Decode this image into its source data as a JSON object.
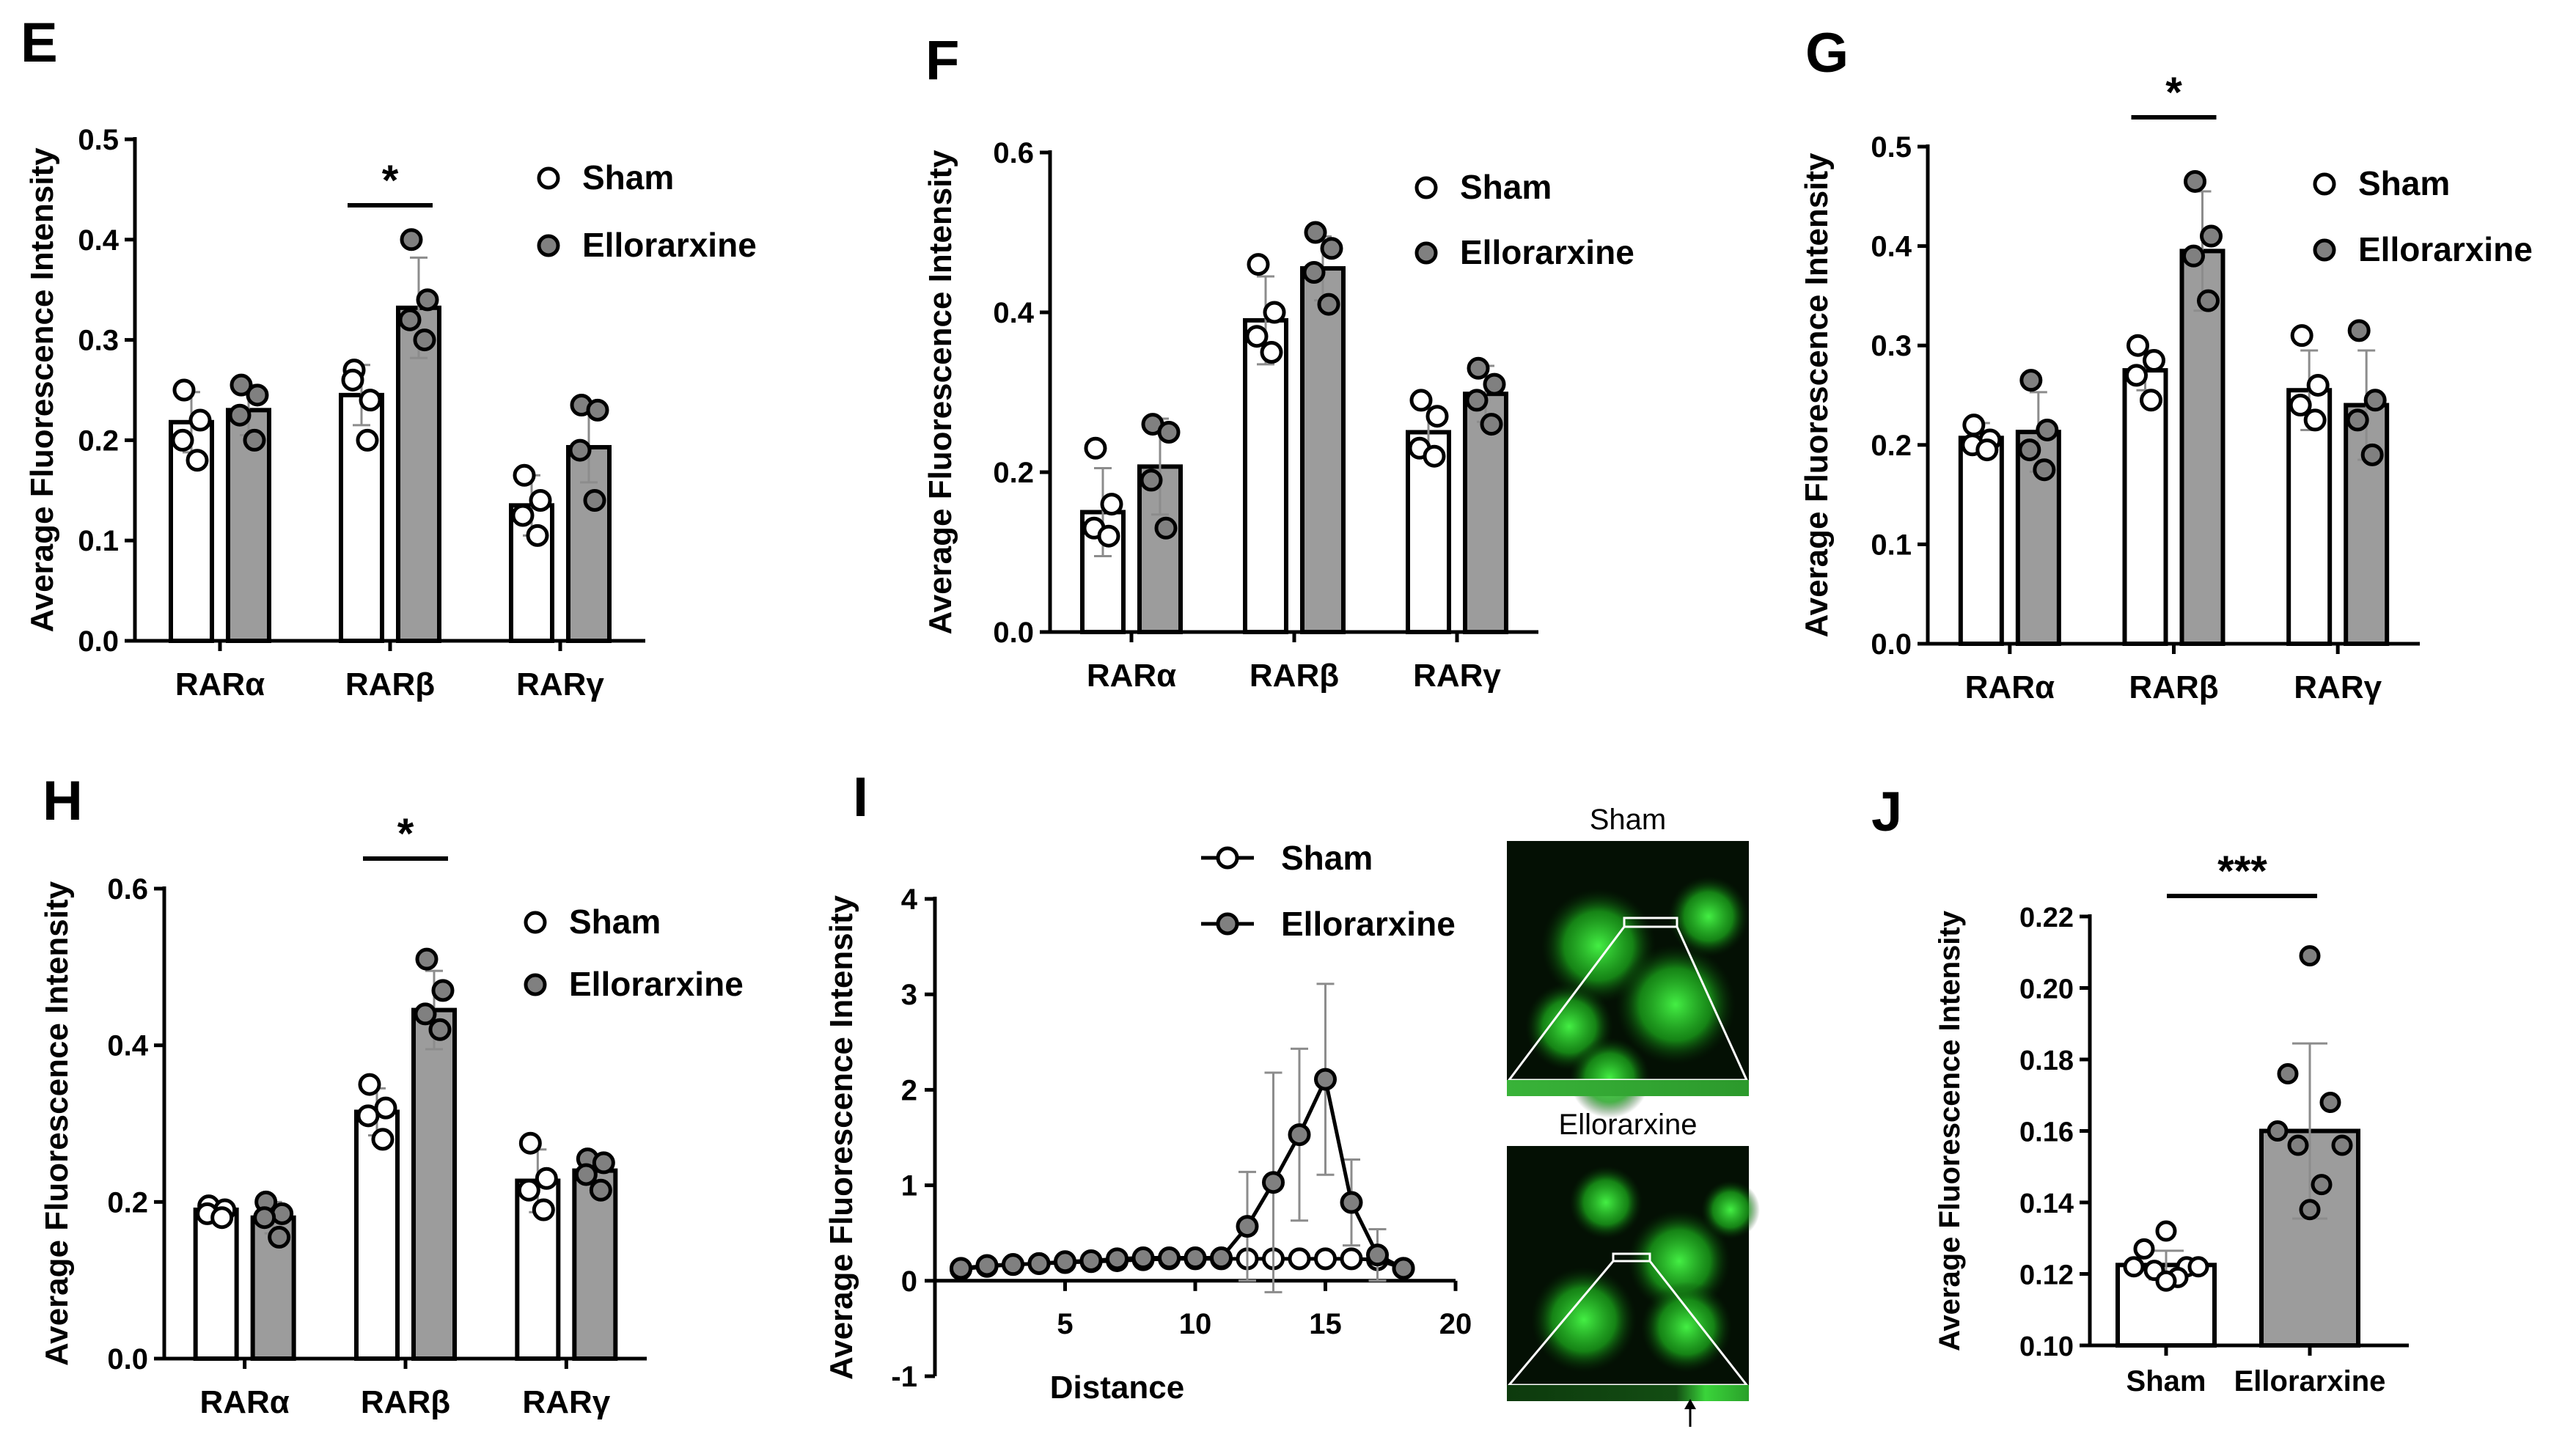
{
  "colors": {
    "axis": "#000000",
    "sham_fill": "#ffffff",
    "ellorarxine_fill": "#9c9c9c",
    "point_gray": "#808080",
    "error_bar": "#8c8c8c",
    "micro_bg": "#041004",
    "micro_green": "#2cd22c"
  },
  "legend": {
    "sham": "Sham",
    "ellorarxine": "Ellorarxine"
  },
  "chart_data": [
    {
      "panel": "E",
      "type": "bar",
      "categories": [
        "RARα",
        "RARβ",
        "RARγ"
      ],
      "ylabel": "Average Fluorescence Intensity",
      "ylim": [
        0,
        0.5
      ],
      "yticks": [
        "0.0",
        "0.1",
        "0.2",
        "0.3",
        "0.4",
        "0.5"
      ],
      "series": [
        {
          "name": "Sham",
          "values": [
            0.218,
            0.245,
            0.135
          ],
          "sd": [
            0.03,
            0.03,
            0.03
          ],
          "points": [
            [
              0.25,
              0.22,
              0.2,
              0.18
            ],
            [
              0.27,
              0.24,
              0.26,
              0.2
            ],
            [
              0.165,
              0.14,
              0.125,
              0.105
            ]
          ]
        },
        {
          "name": "Ellorarxine",
          "values": [
            0.23,
            0.332,
            0.193
          ],
          "sd": [
            0.025,
            0.05,
            0.035
          ],
          "points": [
            [
              0.255,
              0.245,
              0.225,
              0.2
            ],
            [
              0.4,
              0.34,
              0.32,
              0.3
            ],
            [
              0.235,
              0.23,
              0.19,
              0.14
            ]
          ]
        }
      ],
      "significance": [
        {
          "category": "RARβ",
          "label": "*"
        }
      ]
    },
    {
      "panel": "F",
      "type": "bar",
      "categories": [
        "RARα",
        "RARβ",
        "RARγ"
      ],
      "ylabel": "Average Fluorescence Intensity",
      "ylim": [
        0,
        0.6
      ],
      "yticks": [
        "0.0",
        "0.2",
        "0.4",
        "0.6"
      ],
      "series": [
        {
          "name": "Sham",
          "values": [
            0.15,
            0.39,
            0.25
          ],
          "sd": [
            0.055,
            0.055,
            0.03
          ],
          "points": [
            [
              0.23,
              0.16,
              0.13,
              0.12
            ],
            [
              0.46,
              0.4,
              0.37,
              0.35
            ],
            [
              0.29,
              0.27,
              0.23,
              0.22
            ]
          ]
        },
        {
          "name": "Ellorarxine",
          "values": [
            0.207,
            0.455,
            0.298
          ],
          "sd": [
            0.06,
            0.04,
            0.035
          ],
          "points": [
            [
              0.26,
              0.25,
              0.19,
              0.13
            ],
            [
              0.5,
              0.48,
              0.45,
              0.41
            ],
            [
              0.33,
              0.31,
              0.29,
              0.26
            ]
          ]
        }
      ],
      "significance": []
    },
    {
      "panel": "G",
      "type": "bar",
      "categories": [
        "RARα",
        "RARβ",
        "RARγ"
      ],
      "ylabel": "Average Fluorescence Intensity",
      "ylim": [
        0,
        0.5
      ],
      "yticks": [
        "0.0",
        "0.1",
        "0.2",
        "0.3",
        "0.4",
        "0.5"
      ],
      "series": [
        {
          "name": "Sham",
          "values": [
            0.207,
            0.275,
            0.255
          ],
          "sd": [
            0.015,
            0.02,
            0.04
          ],
          "points": [
            [
              0.22,
              0.205,
              0.2,
              0.195
            ],
            [
              0.3,
              0.285,
              0.27,
              0.245
            ],
            [
              0.31,
              0.26,
              0.24,
              0.225
            ]
          ]
        },
        {
          "name": "Ellorarxine",
          "values": [
            0.213,
            0.395,
            0.24
          ],
          "sd": [
            0.04,
            0.06,
            0.055
          ],
          "points": [
            [
              0.265,
              0.215,
              0.195,
              0.175
            ],
            [
              0.465,
              0.41,
              0.39,
              0.345
            ],
            [
              0.315,
              0.245,
              0.225,
              0.19
            ]
          ]
        }
      ],
      "significance": [
        {
          "category": "RARβ",
          "label": "*"
        }
      ]
    },
    {
      "panel": "H",
      "type": "bar",
      "categories": [
        "RARα",
        "RARβ",
        "RARγ"
      ],
      "ylabel": "Average Fluorescence Intensity",
      "ylim": [
        0,
        0.6
      ],
      "yticks": [
        "0.0",
        "0.2",
        "0.4",
        "0.6"
      ],
      "series": [
        {
          "name": "Sham",
          "values": [
            0.19,
            0.315,
            0.227
          ],
          "sd": [
            0.005,
            0.03,
            0.04
          ],
          "points": [
            [
              0.195,
              0.19,
              0.185,
              0.18
            ],
            [
              0.35,
              0.32,
              0.31,
              0.28
            ],
            [
              0.275,
              0.23,
              0.215,
              0.19
            ]
          ]
        },
        {
          "name": "Ellorarxine",
          "values": [
            0.18,
            0.445,
            0.24
          ],
          "sd": [
            0.02,
            0.05,
            0.015
          ],
          "points": [
            [
              0.2,
              0.185,
              0.18,
              0.155
            ],
            [
              0.51,
              0.47,
              0.44,
              0.42
            ],
            [
              0.255,
              0.25,
              0.235,
              0.215
            ]
          ]
        }
      ],
      "significance": [
        {
          "category": "RARβ",
          "label": "*"
        }
      ]
    },
    {
      "panel": "I",
      "type": "line",
      "xlabel": "Distance",
      "ylabel": "Average Fluorescence Intensity",
      "xlim": [
        0,
        20
      ],
      "ylim": [
        -1,
        4
      ],
      "xticks": [
        "5",
        "10",
        "15",
        "20"
      ],
      "yticks": [
        "-1",
        "0",
        "1",
        "2",
        "3",
        "4"
      ],
      "x": [
        1,
        2,
        3,
        4,
        5,
        6,
        7,
        8,
        9,
        10,
        11,
        12,
        13,
        14,
        15,
        16,
        17,
        18
      ],
      "series": [
        {
          "name": "Sham",
          "values": [
            0.12,
            0.15,
            0.17,
            0.18,
            0.19,
            0.2,
            0.21,
            0.22,
            0.23,
            0.23,
            0.23,
            0.23,
            0.23,
            0.23,
            0.23,
            0.23,
            0.22,
            0.13
          ],
          "error": [
            0.03,
            0.03,
            0.03,
            0.03,
            0.03,
            0.03,
            0.03,
            0.03,
            0.03,
            0.03,
            0.03,
            0.03,
            0.03,
            0.03,
            0.03,
            0.03,
            0.03,
            0.03
          ]
        },
        {
          "name": "Ellorarxine",
          "values": [
            0.13,
            0.16,
            0.17,
            0.18,
            0.2,
            0.21,
            0.23,
            0.24,
            0.24,
            0.24,
            0.24,
            0.57,
            1.03,
            1.53,
            2.11,
            0.82,
            0.27,
            0.13
          ],
          "error": [
            0.03,
            0.03,
            0.03,
            0.03,
            0.03,
            0.03,
            0.03,
            0.03,
            0.03,
            0.03,
            0.03,
            0.57,
            1.15,
            0.9,
            1.0,
            0.45,
            0.27,
            0.05
          ]
        }
      ],
      "images": [
        {
          "label": "Sham"
        },
        {
          "label": "Ellorarxine"
        }
      ]
    },
    {
      "panel": "J",
      "type": "bar",
      "categories": [
        "Sham",
        "Ellorarxine"
      ],
      "ylabel": "Average Fluorescence Intensity",
      "ylim": [
        0.1,
        0.22
      ],
      "yticks": [
        "0.10",
        "0.12",
        "0.14",
        "0.16",
        "0.18",
        "0.20",
        "0.22"
      ],
      "values": [
        0.1225,
        0.16
      ],
      "sd": [
        0.004,
        0.0245
      ],
      "points": [
        [
          0.132,
          0.127,
          0.122,
          0.122,
          0.122,
          0.121,
          0.119,
          0.118
        ],
        [
          0.209,
          0.176,
          0.168,
          0.16,
          0.156,
          0.156,
          0.145,
          0.138
        ]
      ],
      "significance": [
        {
          "label": "***"
        }
      ]
    }
  ]
}
